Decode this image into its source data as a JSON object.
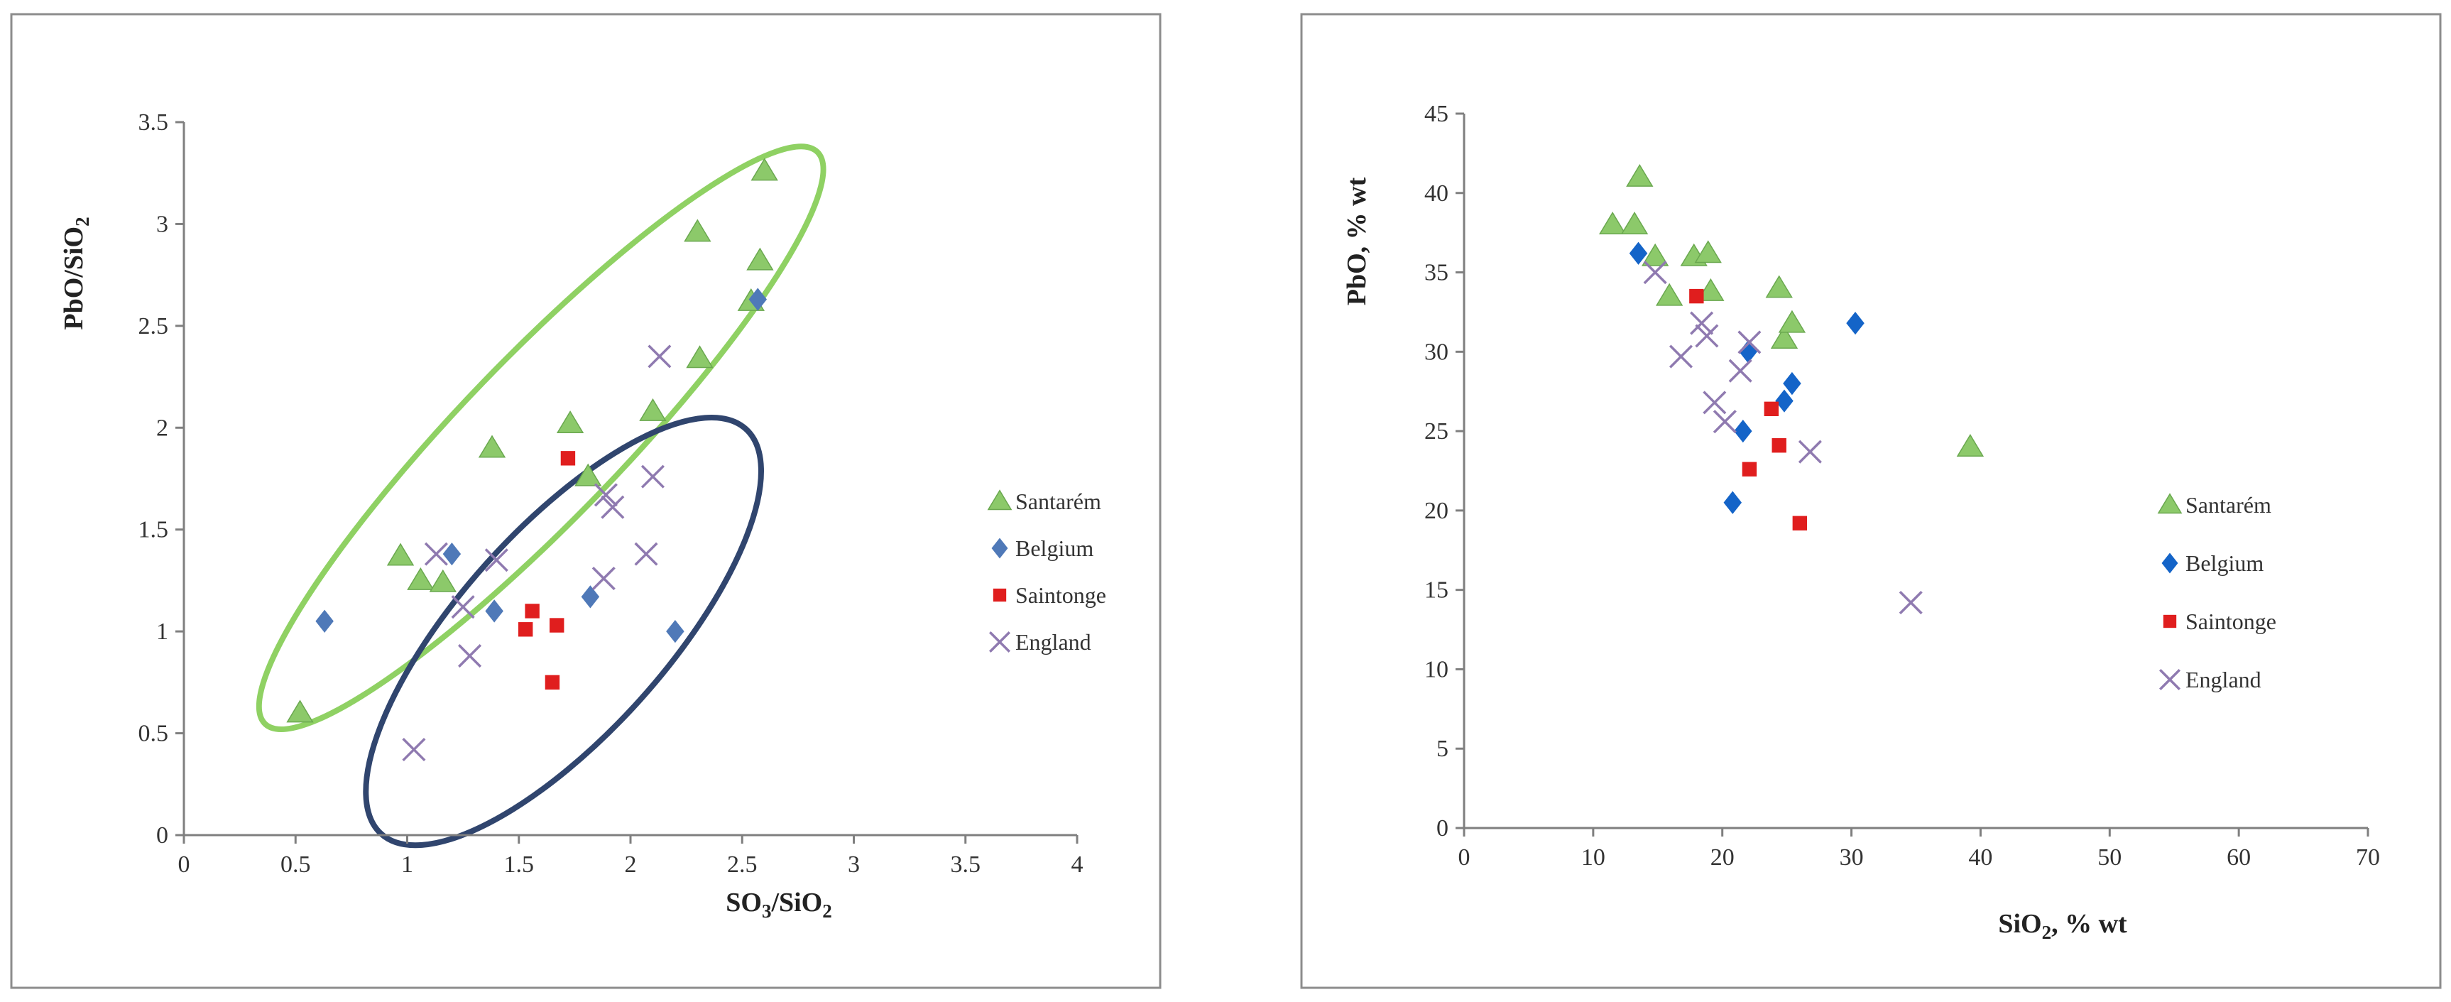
{
  "colors": {
    "santarem": "#8cc96a",
    "belgium": "#4f79b8",
    "saintonge": "#e01e1e",
    "england": "#8f7ab0",
    "belgium_right": "#1464c8",
    "ellipse_green": "#8fd163",
    "ellipse_blue": "#30456e"
  },
  "chart_data": [
    {
      "type": "scatter",
      "title": "",
      "xlabel": "SO3/SiO2",
      "xlabel_main": "SO",
      "xlabel_sub1": "3",
      "xlabel_mid": "/SiO",
      "xlabel_sub2": "2",
      "ylabel": "PbO/SiO2",
      "ylabel_main": "PbO/SiO",
      "ylabel_sub": "2",
      "xlim": [
        0,
        4
      ],
      "ylim": [
        0,
        3.5
      ],
      "xticks": [
        0,
        0.5,
        1,
        1.5,
        2,
        2.5,
        3,
        3.5,
        4
      ],
      "yticks": [
        0,
        0.5,
        1,
        1.5,
        2,
        2.5,
        3,
        3.5
      ],
      "xtick_labels": [
        "0",
        "0.5",
        "1",
        "1.5",
        "2",
        "2.5",
        "3",
        "3.5",
        "4"
      ],
      "ytick_labels": [
        "0",
        "0.5",
        "1",
        "1.5",
        "2",
        "2.5",
        "3",
        "3.5"
      ],
      "legend_position": "right",
      "series": [
        {
          "name": "Santarém",
          "marker": "triangle",
          "color_key": "santarem",
          "points": [
            [
              0.52,
              0.6
            ],
            [
              0.97,
              1.37
            ],
            [
              1.06,
              1.25
            ],
            [
              1.16,
              1.24
            ],
            [
              1.38,
              1.9
            ],
            [
              1.73,
              2.02
            ],
            [
              1.81,
              1.76
            ],
            [
              2.1,
              2.08
            ],
            [
              2.3,
              2.96
            ],
            [
              2.31,
              2.34
            ],
            [
              2.54,
              2.62
            ],
            [
              2.58,
              2.82
            ],
            [
              2.6,
              3.26
            ]
          ]
        },
        {
          "name": "Belgium",
          "marker": "diamond",
          "color_key": "belgium",
          "points": [
            [
              0.63,
              1.05
            ],
            [
              1.2,
              1.38
            ],
            [
              1.39,
              1.1
            ],
            [
              1.82,
              1.17
            ],
            [
              2.2,
              1.0
            ],
            [
              2.57,
              2.63
            ]
          ]
        },
        {
          "name": "Saintonge",
          "marker": "square",
          "color_key": "saintonge",
          "points": [
            [
              1.53,
              1.01
            ],
            [
              1.56,
              1.1
            ],
            [
              1.65,
              0.75
            ],
            [
              1.67,
              1.03
            ],
            [
              1.72,
              1.85
            ]
          ]
        },
        {
          "name": "England",
          "marker": "x",
          "color_key": "england",
          "points": [
            [
              1.03,
              0.42
            ],
            [
              1.13,
              1.38
            ],
            [
              1.25,
              1.12
            ],
            [
              1.28,
              0.88
            ],
            [
              1.4,
              1.35
            ],
            [
              1.88,
              1.26
            ],
            [
              1.89,
              1.67
            ],
            [
              1.92,
              1.61
            ],
            [
              2.07,
              1.38
            ],
            [
              2.1,
              1.76
            ],
            [
              2.13,
              2.35
            ]
          ]
        }
      ],
      "annotations": [
        {
          "shape": "ellipse",
          "color_key": "ellipse_green",
          "center": [
            1.6,
            1.95
          ],
          "semi_axes": [
            1.78,
            0.36
          ],
          "angle_deg": 46
        },
        {
          "shape": "ellipse",
          "color_key": "ellipse_blue",
          "center": [
            1.7,
            1.0
          ],
          "semi_axes": [
            1.22,
            0.46
          ],
          "angle_deg": 48
        }
      ]
    },
    {
      "type": "scatter",
      "title": "",
      "xlabel": "SiO2, % wt",
      "xlabel_main": "SiO",
      "xlabel_sub": "2",
      "xlabel_rest": ", % wt",
      "ylabel": "PbO, % wt",
      "xlim": [
        0,
        70
      ],
      "ylim": [
        0,
        45
      ],
      "xticks": [
        0,
        10,
        20,
        30,
        40,
        50,
        60,
        70
      ],
      "yticks": [
        0,
        5,
        10,
        15,
        20,
        25,
        30,
        35,
        40,
        45
      ],
      "xtick_labels": [
        "0",
        "10",
        "20",
        "30",
        "40",
        "50",
        "60",
        "70"
      ],
      "ytick_labels": [
        "0",
        "5",
        "10",
        "15",
        "20",
        "25",
        "30",
        "35",
        "40",
        "45"
      ],
      "legend_position": "right",
      "series": [
        {
          "name": "Santarém",
          "marker": "triangle",
          "color_key": "santarem",
          "points": [
            [
              11.5,
              38
            ],
            [
              13.2,
              38
            ],
            [
              13.6,
              41
            ],
            [
              14.8,
              36
            ],
            [
              15.9,
              33.5
            ],
            [
              17.8,
              36
            ],
            [
              18.9,
              36.2
            ],
            [
              19.1,
              33.8
            ],
            [
              24.4,
              34
            ],
            [
              24.8,
              30.8
            ],
            [
              25.4,
              31.8
            ],
            [
              39.2,
              24
            ]
          ]
        },
        {
          "name": "Belgium",
          "marker": "diamond",
          "color_key": "belgium_right",
          "points": [
            [
              13.5,
              36.2
            ],
            [
              20.8,
              20.5
            ],
            [
              21.6,
              25
            ],
            [
              22,
              30
            ],
            [
              24.8,
              26.9
            ],
            [
              25.4,
              28
            ],
            [
              30.3,
              31.8
            ]
          ]
        },
        {
          "name": "Saintonge",
          "marker": "square",
          "color_key": "saintonge",
          "points": [
            [
              18,
              33.5
            ],
            [
              22.1,
              22.6
            ],
            [
              23.8,
              26.4
            ],
            [
              24.4,
              24.1
            ],
            [
              26,
              19.2
            ]
          ]
        },
        {
          "name": "England",
          "marker": "x",
          "color_key": "england",
          "points": [
            [
              14.8,
              35
            ],
            [
              16.8,
              29.7
            ],
            [
              18.4,
              31.8
            ],
            [
              18.8,
              31
            ],
            [
              19.4,
              26.8
            ],
            [
              20.2,
              25.6
            ],
            [
              21.4,
              28.8
            ],
            [
              22.1,
              30.6
            ],
            [
              26.8,
              23.7
            ],
            [
              34.6,
              14.2
            ]
          ]
        }
      ]
    }
  ]
}
